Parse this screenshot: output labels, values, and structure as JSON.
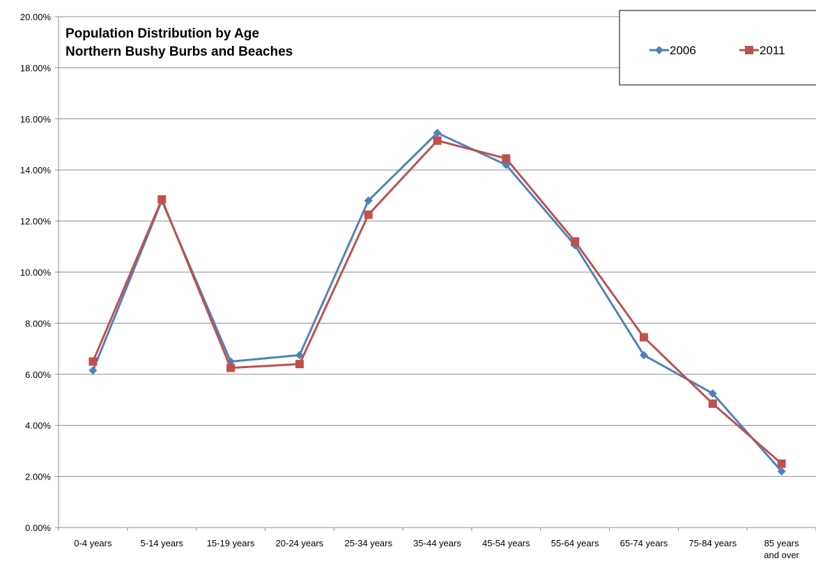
{
  "chart_data": {
    "type": "line",
    "title": "Population Distribution by Age",
    "subtitle": "Northern Bushy Burbs and Beaches",
    "categories": [
      [
        "0-4 years"
      ],
      [
        "5-14 years"
      ],
      [
        "15-19 years"
      ],
      [
        "20-24 years"
      ],
      [
        "25-34 years"
      ],
      [
        "35-44 years"
      ],
      [
        "45-54 years"
      ],
      [
        "55-64 years"
      ],
      [
        "65-74 years"
      ],
      [
        "75-84 years"
      ],
      [
        "85 years",
        "and over"
      ]
    ],
    "ylim": [
      0,
      20
    ],
    "y_ticks": [
      "0.00%",
      "2.00%",
      "4.00%",
      "6.00%",
      "8.00%",
      "10.00%",
      "12.00%",
      "14.00%",
      "16.00%",
      "18.00%",
      "20.00%"
    ],
    "y_unit": "percent",
    "grid": true,
    "legend_position": "top-right",
    "series": [
      {
        "name": "2006",
        "color": "#4f81bd",
        "marker": "diamond",
        "values": [
          6.15,
          12.8,
          6.5,
          6.75,
          12.8,
          15.45,
          14.2,
          11.05,
          6.75,
          5.25,
          2.2
        ]
      },
      {
        "name": "2011",
        "color": "#c0504d",
        "marker": "square",
        "values": [
          6.5,
          12.85,
          6.25,
          6.4,
          12.25,
          15.15,
          14.45,
          11.2,
          7.45,
          4.85,
          2.5
        ]
      }
    ]
  }
}
